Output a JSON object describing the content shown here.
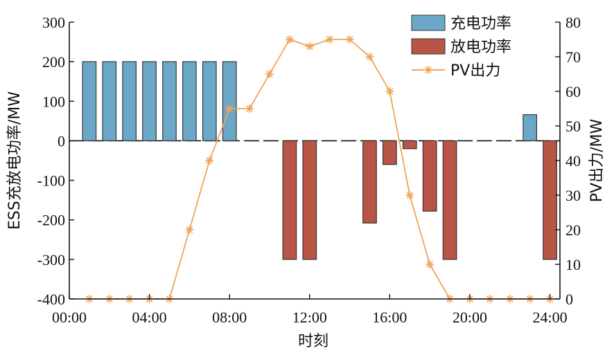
{
  "chart_data": {
    "type": "bar",
    "x_label": "时刻",
    "y_left_label": "ESS充放电功率/MW",
    "y_right_label": "PV出力/MW",
    "x_ticks": [
      "00:00",
      "04:00",
      "08:00",
      "12:00",
      "16:00",
      "20:00",
      "24:00"
    ],
    "y_left_ticks": [
      "300",
      "200",
      "100",
      "0",
      "-100",
      "-200",
      "-300",
      "-400"
    ],
    "y_right_ticks": [
      "80",
      "70",
      "60",
      "50",
      "40",
      "30",
      "20",
      "10",
      "0"
    ],
    "y_left_range": [
      -400,
      300
    ],
    "y_right_range": [
      0,
      80
    ],
    "x_range_hours": [
      0,
      24.5
    ],
    "zero_line_style": "dashed",
    "legend_position": "top-right",
    "hours": [
      1,
      2,
      3,
      4,
      5,
      6,
      7,
      8,
      9,
      10,
      11,
      12,
      13,
      14,
      15,
      16,
      17,
      18,
      19,
      20,
      21,
      22,
      23,
      24
    ],
    "series": [
      {
        "name": "充电功率",
        "kind": "bar",
        "color": "#6ba8c8",
        "values": [
          200,
          200,
          200,
          200,
          200,
          200,
          200,
          200,
          0,
          0,
          0,
          0,
          0,
          0,
          0,
          0,
          0,
          0,
          0,
          0,
          0,
          0,
          66,
          0
        ]
      },
      {
        "name": "放电功率",
        "kind": "bar",
        "color": "#b85547",
        "values": [
          0,
          0,
          0,
          0,
          0,
          0,
          0,
          0,
          0,
          0,
          -300,
          -300,
          0,
          0,
          -208,
          -60,
          -20,
          -178,
          -300,
          0,
          0,
          0,
          0,
          -300
        ]
      },
      {
        "name": "PV出力",
        "kind": "line",
        "color": "#f0a35a",
        "marker": "asterisk",
        "axis": "right",
        "x": [
          1,
          2,
          3,
          4,
          5,
          6,
          7,
          8,
          9,
          10,
          11,
          12,
          13,
          14,
          15,
          16,
          17,
          18,
          19,
          20,
          21,
          22,
          23,
          24
        ],
        "values": [
          0,
          0,
          0,
          0,
          0,
          20,
          40,
          55,
          55,
          65,
          75,
          73,
          75,
          75,
          70,
          60,
          30,
          10,
          0,
          0,
          0,
          0,
          0,
          0
        ]
      }
    ]
  }
}
